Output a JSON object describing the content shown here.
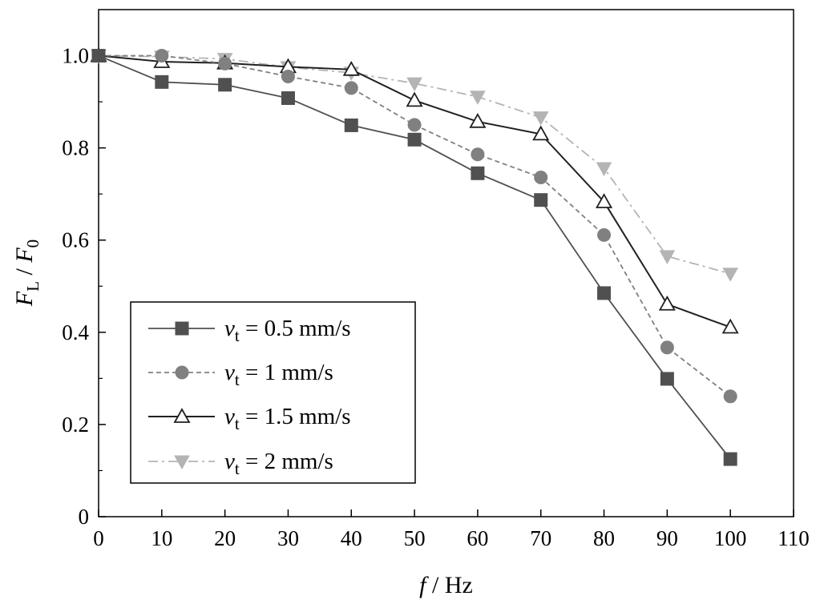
{
  "chart_data": {
    "type": "line",
    "xlabel": {
      "var": "f",
      "sep": " / ",
      "unit": "Hz"
    },
    "ylabel": {
      "num": "F",
      "num_sub": "L",
      "sep": " / ",
      "den": "F",
      "den_sub": "0"
    },
    "xlim": [
      0,
      110
    ],
    "ylim": [
      0,
      1.1
    ],
    "xticks": [
      0,
      10,
      20,
      30,
      40,
      50,
      60,
      70,
      80,
      90,
      100,
      110
    ],
    "yticks": [
      0,
      0.2,
      0.4,
      0.6,
      0.8,
      1.0
    ],
    "ytick_labels": [
      "0",
      "0.2",
      "0.4",
      "0.6",
      "0.8",
      "1.0"
    ],
    "grid": false,
    "legend_position": "bottom-left",
    "x": [
      0,
      10,
      20,
      30,
      40,
      50,
      60,
      70,
      80,
      90,
      100
    ],
    "series": [
      {
        "name": "v_t = 0.5 mm/s",
        "label_var": "v",
        "label_sub": "t",
        "label_rest": " = 0.5 mm/s",
        "values": [
          1.0,
          0.943,
          0.937,
          0.908,
          0.849,
          0.818,
          0.745,
          0.687,
          0.485,
          0.299,
          0.125
        ],
        "color": "#505050",
        "marker": "square",
        "dash": "solid"
      },
      {
        "name": "v_t = 1 mm/s",
        "label_var": "v",
        "label_sub": "t",
        "label_rest": " = 1 mm/s",
        "values": [
          1.0,
          1.0,
          0.983,
          0.955,
          0.93,
          0.85,
          0.786,
          0.736,
          0.611,
          0.367,
          0.261
        ],
        "color": "#808080",
        "marker": "circle",
        "dash": "dashed"
      },
      {
        "name": "v_t = 1.5 mm/s",
        "label_var": "v",
        "label_sub": "t",
        "label_rest": " = 1.5 mm/s",
        "values": [
          1.0,
          0.987,
          0.984,
          0.976,
          0.97,
          0.903,
          0.857,
          0.83,
          0.683,
          0.461,
          0.411
        ],
        "color": "#202020",
        "marker": "triangle-up-open",
        "dash": "solid"
      },
      {
        "name": "v_t = 2 mm/s",
        "label_var": "v",
        "label_sub": "t",
        "label_rest": " = 2 mm/s",
        "values": [
          1.0,
          0.998,
          0.993,
          0.975,
          0.963,
          0.94,
          0.911,
          0.866,
          0.756,
          0.565,
          0.527
        ],
        "color": "#b4b4b4",
        "marker": "triangle-down",
        "dash": "dashdot"
      }
    ]
  }
}
